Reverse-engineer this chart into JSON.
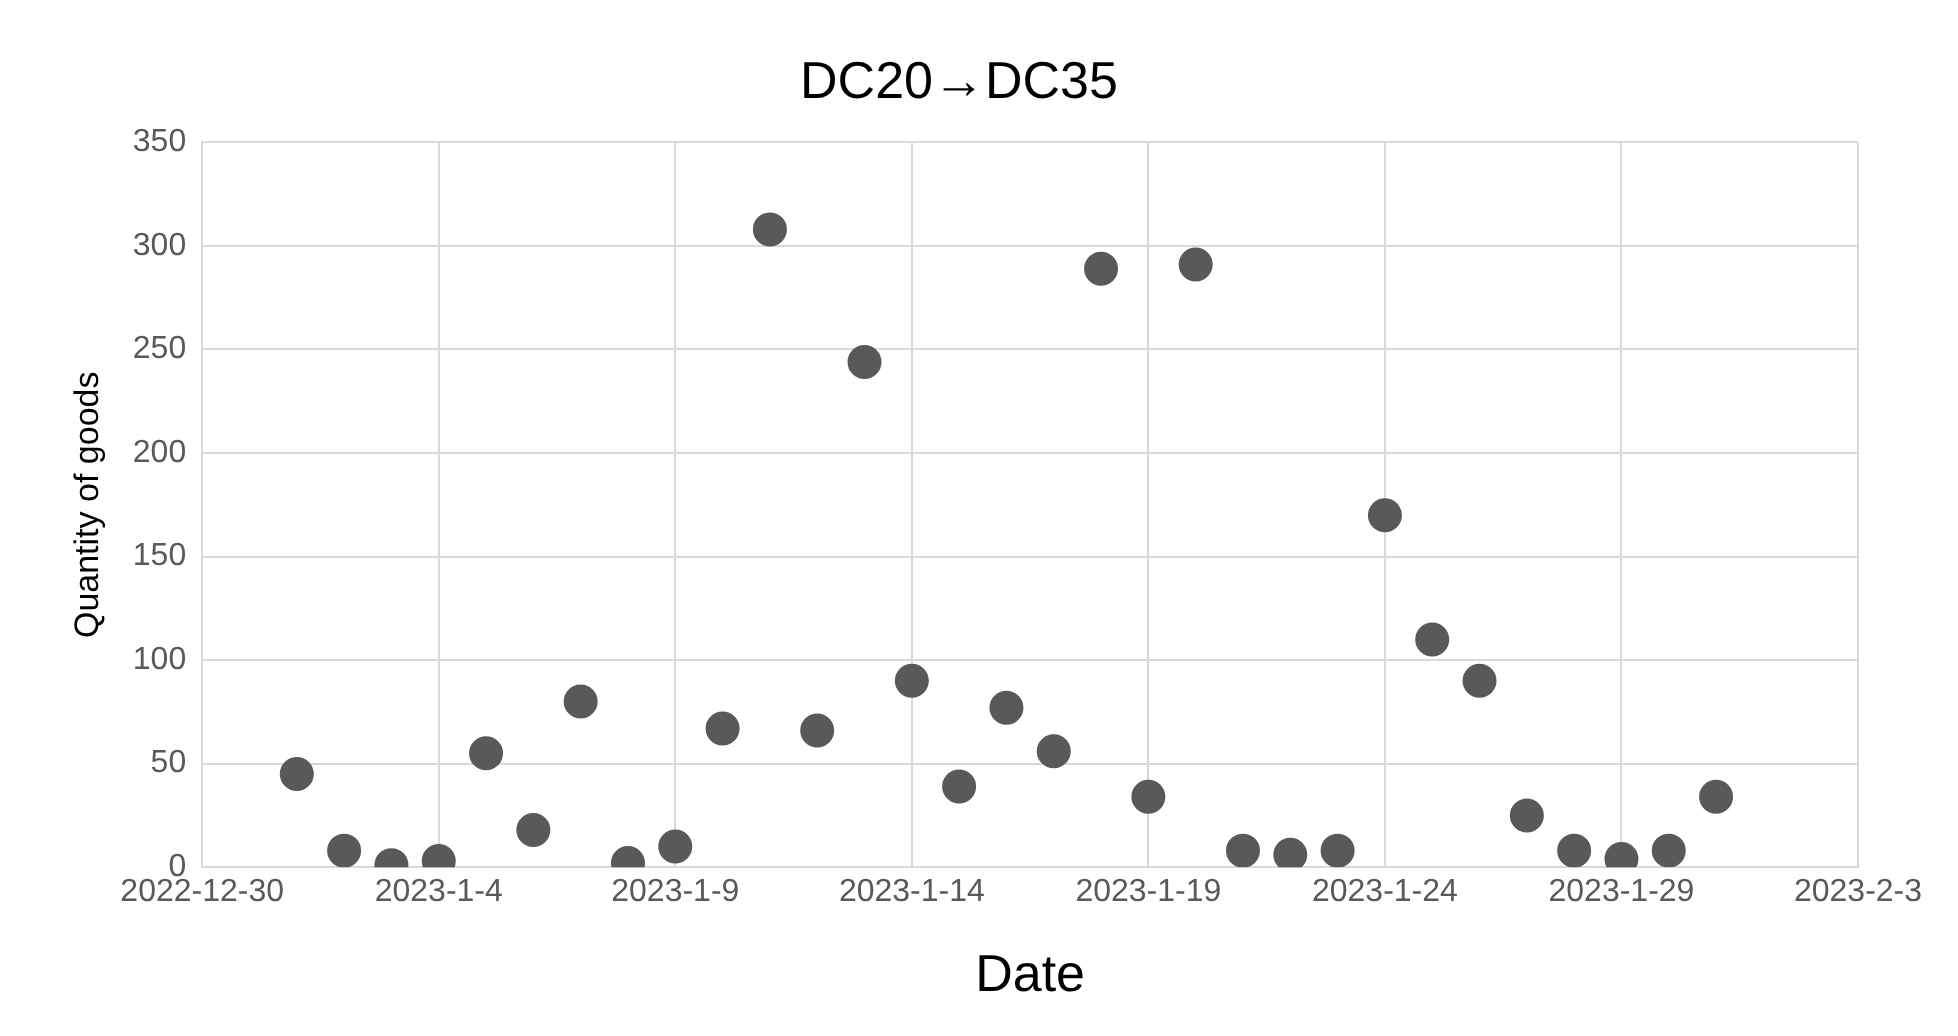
{
  "chart_data": {
    "type": "scatter",
    "title": "DC20→DC35",
    "xlabel": "Date",
    "ylabel": "Quantity of goods",
    "x": [
      "2023-01-01",
      "2023-01-02",
      "2023-01-03",
      "2023-01-04",
      "2023-01-05",
      "2023-01-06",
      "2023-01-07",
      "2023-01-08",
      "2023-01-09",
      "2023-01-10",
      "2023-01-11",
      "2023-01-12",
      "2023-01-13",
      "2023-01-14",
      "2023-01-15",
      "2023-01-16",
      "2023-01-17",
      "2023-01-18",
      "2023-01-19",
      "2023-01-20",
      "2023-01-21",
      "2023-01-22",
      "2023-01-23",
      "2023-01-24",
      "2023-01-25",
      "2023-01-26",
      "2023-01-27",
      "2023-01-28",
      "2023-01-29",
      "2023-01-30",
      "2023-01-31"
    ],
    "series": [
      {
        "color": "#595959",
        "values": [
          45,
          8,
          1,
          3,
          55,
          18,
          80,
          2,
          10,
          67,
          308,
          66,
          244,
          90,
          39,
          77,
          56,
          289,
          34,
          291,
          8,
          6,
          8,
          170,
          110,
          90,
          25,
          8,
          4,
          8,
          34
        ]
      }
    ],
    "xlim": [
      "2022-12-30",
      "2023-02-03"
    ],
    "xticks": [
      {
        "value": "2022-12-30",
        "label": "2022-12-30"
      },
      {
        "value": "2023-01-04",
        "label": "2023-1-4"
      },
      {
        "value": "2023-01-09",
        "label": "2023-1-9"
      },
      {
        "value": "2023-01-14",
        "label": "2023-1-14"
      },
      {
        "value": "2023-01-19",
        "label": "2023-1-19"
      },
      {
        "value": "2023-01-24",
        "label": "2023-1-24"
      },
      {
        "value": "2023-01-29",
        "label": "2023-1-29"
      },
      {
        "value": "2023-02-03",
        "label": "2023-2-3"
      }
    ],
    "ylim": [
      0,
      350
    ],
    "yticks": [
      0,
      50,
      100,
      150,
      200,
      250,
      300,
      350
    ],
    "grid": true,
    "legend": false,
    "marker": "circle"
  }
}
